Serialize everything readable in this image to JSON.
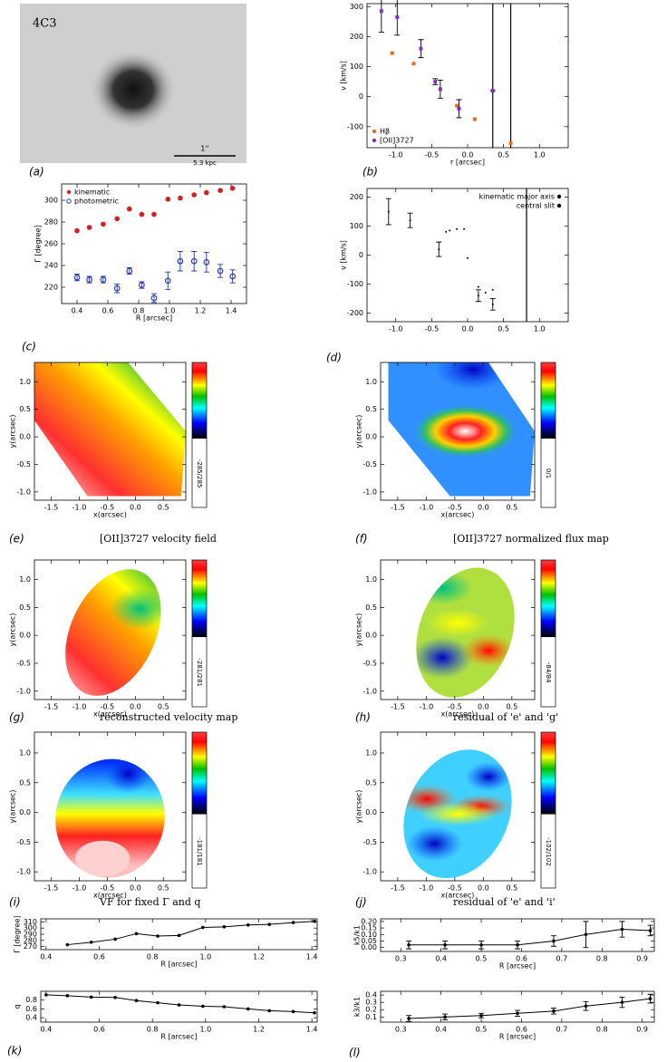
{
  "chart_data": [
    {
      "type": "image",
      "label": "(a)",
      "title": "4C3",
      "scale_label": "1''",
      "scale_sublabel": "5.3 kpc"
    },
    {
      "type": "scatter",
      "label": "(b)",
      "xlabel": "r [arcsec]",
      "ylabel": "v [km/s]",
      "xlim": [
        -1.4,
        1.4
      ],
      "xticks": [
        {
          "value": -1,
          "label": "-1.0"
        },
        -0.5,
        {
          "value": 0,
          "label": "0.0"
        },
        0.5,
        {
          "value": 1,
          "label": "1.0"
        }
      ],
      "ylim": [
        -170,
        310
      ],
      "yticks": [
        -100,
        0,
        100,
        200,
        300
      ],
      "legend": "lower left",
      "vlines": [
        0.35,
        0.6
      ],
      "series": [
        {
          "name": "Hβ",
          "color": "#e07020",
          "marker": "square",
          "x": [
            -1.05,
            -0.75,
            -0.15,
            0.1,
            0.6
          ],
          "values": [
            145,
            110,
            -30,
            -75,
            -155
          ]
        },
        {
          "name": "[OII]3727",
          "color": "#8030c0",
          "marker": "square",
          "x": [
            -1.2,
            -0.98,
            -0.65,
            -0.45,
            -0.38,
            -0.12,
            0.35
          ],
          "values": [
            285,
            265,
            160,
            50,
            25,
            -40,
            20
          ],
          "errors": [
            70,
            60,
            30,
            10,
            30,
            30,
            0
          ]
        }
      ]
    },
    {
      "type": "scatter",
      "label": "(c)",
      "xlabel": "R [arcsec]",
      "ylabel": "Γ [degree]",
      "xlim": [
        0.3,
        1.5
      ],
      "xticks": [
        0.4,
        0.6,
        0.8,
        {
          "value": 1,
          "label": "1.0"
        },
        1.2,
        1.4
      ],
      "ylim": [
        205,
        315
      ],
      "yticks": [
        220,
        240,
        260,
        280,
        300
      ],
      "legend": "upper left",
      "series": [
        {
          "name": "kinematic",
          "color": "#d02020",
          "marker": "circle",
          "x": [
            0.4,
            0.48,
            0.57,
            0.66,
            0.74,
            0.82,
            0.9,
            0.99,
            1.07,
            1.16,
            1.24,
            1.33,
            1.41
          ],
          "values": [
            272,
            275,
            278,
            283,
            292,
            287,
            287,
            301,
            302,
            305,
            307,
            309,
            311
          ]
        },
        {
          "name": "photometric",
          "color": "#2030b0",
          "marker": "open-circle",
          "x": [
            0.4,
            0.48,
            0.57,
            0.66,
            0.74,
            0.82,
            0.9,
            0.99,
            1.07,
            1.16,
            1.24,
            1.33,
            1.41
          ],
          "values": [
            229,
            227,
            227,
            219,
            235,
            222,
            210,
            226,
            244,
            244,
            243,
            235,
            230
          ],
          "errors": [
            3,
            3,
            3,
            4,
            3,
            3,
            4,
            8,
            9,
            9,
            9,
            6,
            6
          ]
        }
      ]
    },
    {
      "type": "scatter",
      "label": "(d)",
      "xlabel": "",
      "ylabel": "v [km/s]",
      "xlim": [
        -1.4,
        1.4
      ],
      "xticks": [
        {
          "value": -1,
          "label": "-1.0"
        },
        -0.5,
        {
          "value": 0,
          "label": "0.0"
        },
        0.5,
        {
          "value": 1,
          "label": "1.0"
        }
      ],
      "ylim": [
        -230,
        230
      ],
      "yticks": [
        -200,
        -100,
        0,
        100,
        200
      ],
      "legend": "upper right",
      "vlines": [
        0.82
      ],
      "series": [
        {
          "name": "kinematic major axis",
          "color": "#000000",
          "marker": "dot",
          "x": [
            -1.1,
            -0.8,
            -0.4,
            0.15,
            0.35
          ],
          "values": [
            150,
            120,
            20,
            -140,
            -170
          ],
          "errors": [
            45,
            25,
            25,
            20,
            20
          ]
        },
        {
          "name": "central slit",
          "color": "#000000",
          "marker": "dot",
          "x": [
            -0.3,
            -0.25,
            -0.15,
            -0.05,
            0.0,
            0.15,
            0.25,
            0.35
          ],
          "values": [
            80,
            85,
            90,
            90,
            -10,
            -110,
            -130,
            -120
          ]
        }
      ]
    },
    {
      "type": "map",
      "label": "(e)",
      "caption": "[OII]3727 velocity field",
      "colorbar_label": "-285/285",
      "xlabel": "x(arcsec)",
      "ylabel": "y(arcsec)",
      "xlim": [
        -1.8,
        0.9
      ],
      "ylim": [
        -1.15,
        1.35
      ],
      "xticks": [
        -1.5,
        {
          "value": -1,
          "label": "-1.0"
        },
        -0.5,
        {
          "value": 0,
          "label": "0.0"
        },
        0.5
      ],
      "yticks": [
        {
          "value": -1,
          "label": "-1.0"
        },
        -0.5,
        {
          "value": 0,
          "label": "0.0"
        },
        0.5,
        {
          "value": 1,
          "label": "1.0"
        }
      ]
    },
    {
      "type": "map",
      "label": "(f)",
      "caption": "[OII]3727 normalized flux map",
      "colorbar_label": "0/1",
      "xlabel": "x(arcsec)",
      "ylabel": "y(arcsec)",
      "xlim": [
        -1.8,
        0.9
      ],
      "ylim": [
        -1.15,
        1.35
      ],
      "xticks": [
        -1.5,
        {
          "value": -1,
          "label": "-1.0"
        },
        -0.5,
        {
          "value": 0,
          "label": "0.0"
        },
        0.5
      ],
      "yticks": [
        {
          "value": -1,
          "label": "-1.0"
        },
        -0.5,
        {
          "value": 0,
          "label": "0.0"
        },
        0.5,
        {
          "value": 1,
          "label": "1.0"
        }
      ]
    },
    {
      "type": "map",
      "label": "(g)",
      "caption": "reconstructed velocity map",
      "colorbar_label": "-281/281",
      "xlabel": "x(arcsec)",
      "ylabel": "y(arcsec)",
      "xlim": [
        -1.8,
        0.9
      ],
      "ylim": [
        -1.15,
        1.35
      ],
      "xticks": [
        -1.5,
        {
          "value": -1,
          "label": "-1.0"
        },
        -0.5,
        {
          "value": 0,
          "label": "0.0"
        },
        0.5
      ],
      "yticks": [
        {
          "value": -1,
          "label": "-1.0"
        },
        -0.5,
        {
          "value": 0,
          "label": "0.0"
        },
        0.5,
        {
          "value": 1,
          "label": "1.0"
        }
      ]
    },
    {
      "type": "map",
      "label": "(h)",
      "caption": "residual of 'e' and 'g'",
      "colorbar_label": "-84/84",
      "xlabel": "x(arcsec)",
      "ylabel": "y(arcsec)",
      "xlim": [
        -1.8,
        0.9
      ],
      "ylim": [
        -1.15,
        1.35
      ],
      "xticks": [
        -1.5,
        {
          "value": -1,
          "label": "-1.0"
        },
        -0.5,
        {
          "value": 0,
          "label": "0.0"
        },
        0.5
      ],
      "yticks": [
        {
          "value": -1,
          "label": "-1.0"
        },
        -0.5,
        {
          "value": 0,
          "label": "0.0"
        },
        0.5,
        {
          "value": 1,
          "label": "1.0"
        }
      ]
    },
    {
      "type": "map",
      "label": "(i)",
      "caption": "VF for fixed Γ and q",
      "colorbar_label": "-181/181",
      "xlabel": "x(arcsec)",
      "ylabel": "y(arcsec)",
      "xlim": [
        -1.8,
        0.9
      ],
      "ylim": [
        -1.15,
        1.35
      ],
      "xticks": [
        -1.5,
        {
          "value": -1,
          "label": "-1.0"
        },
        -0.5,
        {
          "value": 0,
          "label": "0.0"
        },
        0.5
      ],
      "yticks": [
        {
          "value": -1,
          "label": "-1.0"
        },
        -0.5,
        {
          "value": 0,
          "label": "0.0"
        },
        0.5,
        {
          "value": 1,
          "label": "1.0"
        }
      ]
    },
    {
      "type": "map",
      "label": "(j)",
      "caption": "residual of 'e' and 'i'",
      "colorbar_label": "-102/102",
      "xlabel": "x(arcsec)",
      "ylabel": "y(arcsec)",
      "xlim": [
        -1.8,
        0.9
      ],
      "ylim": [
        -1.15,
        1.35
      ],
      "xticks": [
        -1.5,
        {
          "value": -1,
          "label": "-1.0"
        },
        -0.5,
        {
          "value": 0,
          "label": "0.0"
        },
        0.5
      ],
      "yticks": [
        {
          "value": -1,
          "label": "-1.0"
        },
        -0.5,
        {
          "value": 0,
          "label": "0.0"
        },
        0.5,
        {
          "value": 1,
          "label": "1.0"
        }
      ]
    },
    {
      "type": "line",
      "xlabel": "R [arcsec]",
      "ylabel": "Γ [degree]",
      "xlim": [
        0.38,
        1.42
      ],
      "xticks": [
        0.4,
        0.6,
        0.8,
        {
          "value": 1,
          "label": "1.0"
        },
        1.2,
        1.4
      ],
      "ylim": [
        265,
        315
      ],
      "yticks": [
        270,
        280,
        290,
        300,
        310
      ],
      "series": [
        {
          "color": "#000000",
          "x": [
            0.48,
            0.57,
            0.66,
            0.74,
            0.82,
            0.9,
            0.99,
            1.07,
            1.16,
            1.24,
            1.33,
            1.41
          ],
          "values": [
            273,
            277,
            282,
            291,
            287,
            288,
            301,
            302,
            305,
            306,
            309,
            311
          ]
        }
      ]
    },
    {
      "type": "line",
      "label": "(k)",
      "xlabel": "R [arcsec]",
      "ylabel": "q",
      "xlim": [
        0.38,
        1.42
      ],
      "xticks": [
        0.4,
        0.6,
        0.8,
        {
          "value": 1,
          "label": "1.0"
        },
        1.2,
        1.4
      ],
      "ylim": [
        0.3,
        1.0
      ],
      "yticks": [
        0.4,
        0.6,
        0.8
      ],
      "series": [
        {
          "color": "#000000",
          "x": [
            0.4,
            0.48,
            0.57,
            0.66,
            0.74,
            0.82,
            0.9,
            0.99,
            1.07,
            1.16,
            1.24,
            1.33,
            1.41
          ],
          "values": [
            0.92,
            0.9,
            0.87,
            0.86,
            0.79,
            0.74,
            0.69,
            0.66,
            0.65,
            0.6,
            0.56,
            0.54,
            0.51
          ]
        }
      ]
    },
    {
      "type": "line",
      "xlabel": "R [arcsec]",
      "ylabel": "k5/k1",
      "xlim": [
        0.25,
        0.93
      ],
      "xticks": [
        0.3,
        0.4,
        0.5,
        0.6,
        0.7,
        0.8,
        0.9
      ],
      "ylim": [
        -0.03,
        0.22
      ],
      "yticks": [
        {
          "value": 0,
          "label": "0.00"
        },
        0.05,
        {
          "value": 0.1,
          "label": "0.10"
        },
        0.15,
        {
          "value": 0.2,
          "label": "0.20"
        }
      ],
      "series": [
        {
          "color": "#000000",
          "x": [
            0.32,
            0.41,
            0.5,
            0.59,
            0.68,
            0.76,
            0.85,
            0.92
          ],
          "values": [
            0.02,
            0.02,
            0.02,
            0.02,
            0.05,
            0.1,
            0.14,
            0.13
          ],
          "errors": [
            0.03,
            0.03,
            0.03,
            0.03,
            0.04,
            0.1,
            0.06,
            0.04
          ]
        }
      ]
    },
    {
      "type": "line",
      "label": "(l)",
      "xlabel": "R [arcsec]",
      "ylabel": "k3/k1",
      "xlim": [
        0.25,
        0.93
      ],
      "xticks": [
        0.3,
        0.4,
        0.5,
        0.6,
        0.7,
        0.8,
        0.9
      ],
      "ylim": [
        0.03,
        0.45
      ],
      "yticks": [
        0.1,
        0.2,
        0.3,
        0.4
      ],
      "series": [
        {
          "color": "#000000",
          "x": [
            0.32,
            0.41,
            0.5,
            0.59,
            0.68,
            0.76,
            0.85,
            0.92
          ],
          "values": [
            0.08,
            0.1,
            0.12,
            0.15,
            0.18,
            0.25,
            0.3,
            0.35
          ],
          "errors": [
            0.04,
            0.04,
            0.03,
            0.04,
            0.04,
            0.06,
            0.07,
            0.06
          ]
        }
      ]
    }
  ]
}
